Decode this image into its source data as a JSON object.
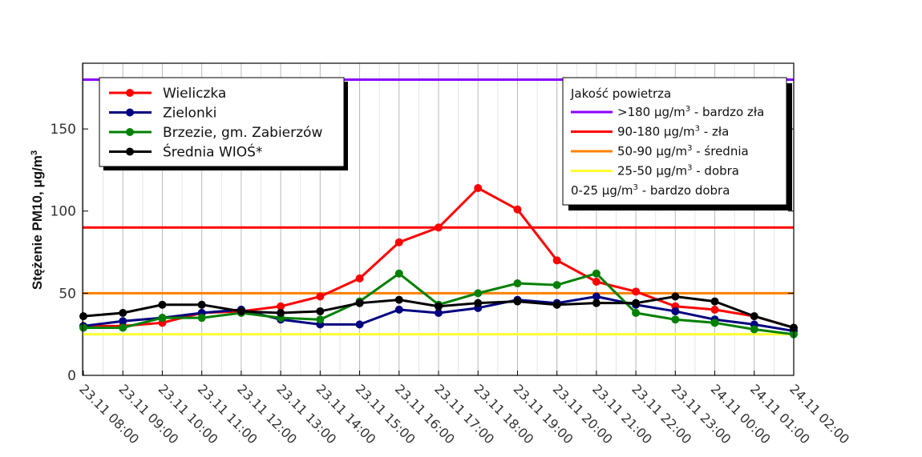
{
  "chart_data": {
    "type": "line",
    "title": "",
    "xlabel": "",
    "ylabel": "Stężenie PM10, μg/m³",
    "ylabel_main": "Stężenie PM10, μg/m",
    "ylabel_sup": "3",
    "ylim": [
      0,
      190
    ],
    "yticks": [
      0,
      50,
      100,
      150
    ],
    "grid": "vertical",
    "categories": [
      "23.11 08:00",
      "23.11 09:00",
      "23.11 10:00",
      "23.11 11:00",
      "23.11 12:00",
      "23.11 13:00",
      "23.11 14:00",
      "23.11 15:00",
      "23.11 16:00",
      "23.11 17:00",
      "23.11 18:00",
      "23.11 19:00",
      "23.11 20:00",
      "23.11 21:00",
      "23.11 22:00",
      "23.11 23:00",
      "24.11 00:00",
      "24.11 01:00",
      "24.11 02:00"
    ],
    "series": [
      {
        "name": "Wieliczka",
        "color": "#ff0000",
        "values": [
          30,
          30,
          32,
          38,
          39,
          42,
          48,
          59,
          81,
          90,
          114,
          101,
          70,
          57,
          51,
          42,
          40,
          36,
          29
        ]
      },
      {
        "name": "Zielonki",
        "color": "#000080",
        "values": [
          30,
          33,
          35,
          38,
          40,
          34,
          31,
          31,
          40,
          38,
          41,
          46,
          44,
          48,
          43,
          39,
          34,
          31,
          27
        ]
      },
      {
        "name": "Brzezie, gm. Zabierzów",
        "color": "#008000",
        "values": [
          29,
          29,
          35,
          35,
          38,
          35,
          34,
          45,
          62,
          43,
          50,
          56,
          55,
          62,
          38,
          34,
          32,
          28,
          25
        ]
      },
      {
        "name": "Średnia WIOŚ*",
        "color": "#000000",
        "values": [
          36,
          38,
          43,
          43,
          39,
          38,
          39,
          44,
          46,
          42,
          44,
          45,
          43,
          44,
          44,
          48,
          45,
          36,
          29
        ]
      }
    ],
    "thresholds": [
      {
        "value": 180,
        "color": "#8b00ff",
        "label": ">180 μg/m³ - bardzo zła"
      },
      {
        "value": 90,
        "color": "#ff0000",
        "label": "90-180 μg/m³ - zła"
      },
      {
        "value": 50,
        "color": "#ff8000",
        "label": "50-90 μg/m³ - średnia"
      },
      {
        "value": 25,
        "color": "#ffff33",
        "label": "25-50 μg/m³ - dobra"
      }
    ],
    "legend_series_position": "top-left",
    "legend_quality": {
      "position": "top-right",
      "title": "Jakość powietrza",
      "items": [
        {
          "prefix": ">180 μg/m",
          "sup": "3",
          "suffix": " - bardzo zła",
          "color": "#8b00ff"
        },
        {
          "prefix": "90-180 μg/m",
          "sup": "3",
          "suffix": " - zła",
          "color": "#ff0000"
        },
        {
          "prefix": "50-90 μg/m",
          "sup": "3",
          "suffix": " - średnia",
          "color": "#ff8000"
        },
        {
          "prefix": "25-50 μg/m",
          "sup": "3",
          "suffix": " - dobra",
          "color": "#ffff33"
        },
        {
          "prefix": "0-25 μg/m",
          "sup": "3",
          "suffix": " - bardzo dobra",
          "color": null
        }
      ]
    }
  }
}
